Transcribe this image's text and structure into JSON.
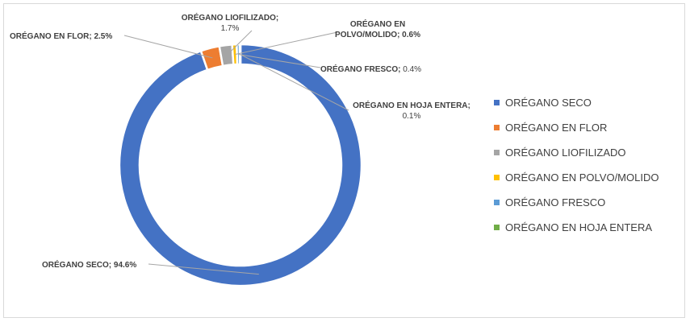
{
  "chart_data": {
    "type": "pie",
    "donut": true,
    "title": "",
    "legend_position": "right",
    "slices": [
      {
        "name": "ORÉGANO SECO",
        "value": 94.6,
        "value_label": "94.6%",
        "color": "#4472C4"
      },
      {
        "name": "ORÉGANO EN FLOR",
        "value": 2.5,
        "value_label": "2.5%",
        "color": "#ED7D31"
      },
      {
        "name": "ORÉGANO LIOFILIZADO",
        "value": 1.7,
        "value_label": "1.7%",
        "color": "#A5A5A5"
      },
      {
        "name": "ORÉGANO EN POLVO/MOLIDO",
        "value": 0.6,
        "value_label": "0.6%",
        "color": "#FFC000"
      },
      {
        "name": "ORÉGANO FRESCO",
        "value": 0.4,
        "value_label": "0.4%",
        "color": "#5B9BD5"
      },
      {
        "name": "ORÉGANO EN HOJA ENTERA",
        "value": 0.1,
        "value_label": "0.1%",
        "color": "#70AD47"
      }
    ]
  }
}
